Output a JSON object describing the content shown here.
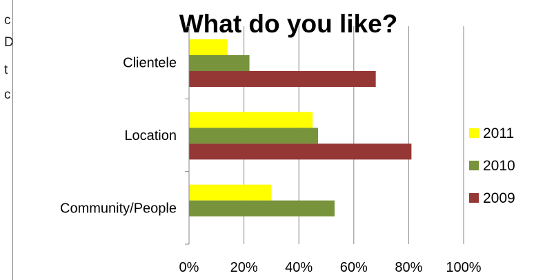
{
  "left_text_fragments": [
    "c",
    "D",
    "t",
    "c"
  ],
  "chart_data": {
    "type": "bar",
    "orientation": "horizontal",
    "title": "What do you like?",
    "categories": [
      "Clientele",
      "Location",
      "Community/People"
    ],
    "series": [
      {
        "name": "2011",
        "color": "#ffff00",
        "values": [
          14,
          45,
          30
        ]
      },
      {
        "name": "2010",
        "color": "#77933c",
        "values": [
          22,
          47,
          53
        ]
      },
      {
        "name": "2009",
        "color": "#953735",
        "values": [
          68,
          81,
          0
        ]
      }
    ],
    "xlim": [
      0,
      100
    ],
    "x_ticks": [
      "0%",
      "20%",
      "40%",
      "60%",
      "80%",
      "100%"
    ],
    "xlabel": "",
    "ylabel": "",
    "grid": "vertical",
    "legend_position": "right"
  }
}
